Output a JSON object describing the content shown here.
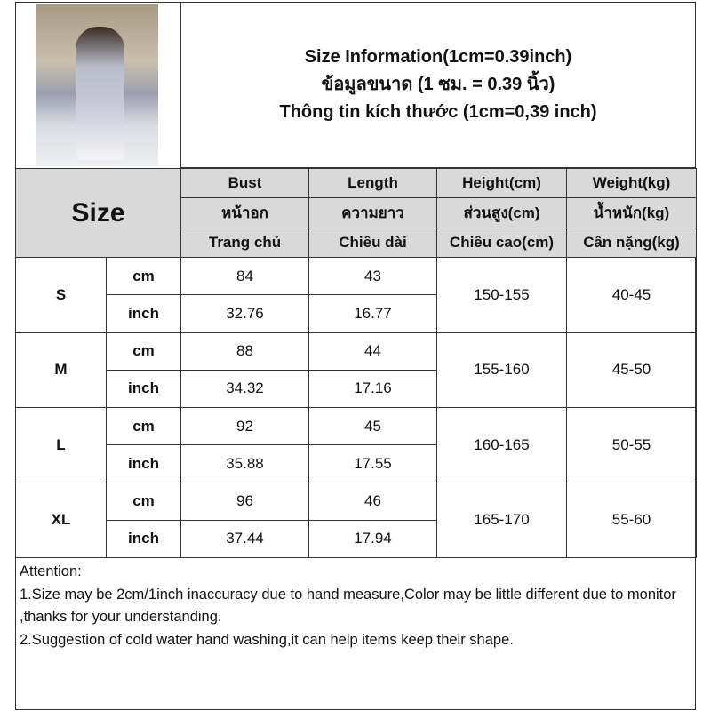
{
  "title": {
    "line1": "Size Information(1cm=0.39inch)",
    "line2": "ข้อมูลขนาด (1 ซม. = 0.39 นิ้ว)",
    "line3": "Thông tin kích thước (1cm=0,39 inch)"
  },
  "size_header": "Size",
  "columns": [
    {
      "en": "Bust",
      "th": "หน้าอก",
      "vi": "Trang chủ"
    },
    {
      "en": "Length",
      "th": "ความยาว",
      "vi": "Chiều dài"
    },
    {
      "en": "Height(cm)",
      "th": "ส่วนสูง(cm)",
      "vi": "Chiều cao(cm)"
    },
    {
      "en": "Weight(kg)",
      "th": "น้ำหนัก(kg)",
      "vi": "Cân nặng(kg)"
    }
  ],
  "sizes": [
    {
      "size": "S",
      "cm_label": "cm",
      "inch_label": "inch",
      "bust_cm": "84",
      "length_cm": "43",
      "bust_inch": "32.76",
      "length_inch": "16.77",
      "height": "150-155",
      "weight": "40-45"
    },
    {
      "size": "M",
      "cm_label": "cm",
      "inch_label": "inch",
      "bust_cm": "88",
      "length_cm": "44",
      "bust_inch": "34.32",
      "length_inch": "17.16",
      "height": "155-160",
      "weight": "45-50"
    },
    {
      "size": "L",
      "cm_label": "cm",
      "inch_label": "inch",
      "bust_cm": "92",
      "length_cm": "45",
      "bust_inch": "35.88",
      "length_inch": "17.55",
      "height": "160-165",
      "weight": "50-55"
    },
    {
      "size": "XL",
      "cm_label": "cm",
      "inch_label": "inch",
      "bust_cm": "96",
      "length_cm": "46",
      "bust_inch": "37.44",
      "length_inch": "17.94",
      "height": "165-170",
      "weight": "55-60"
    }
  ],
  "notes": {
    "heading": "Attention:",
    "line1": "1.Size may be 2cm/1inch inaccuracy due to hand measure,Color may be little different due to monitor ,thanks for your understanding.",
    "line2": "2.Suggestion of cold water hand washing,it can help items keep their shape."
  }
}
